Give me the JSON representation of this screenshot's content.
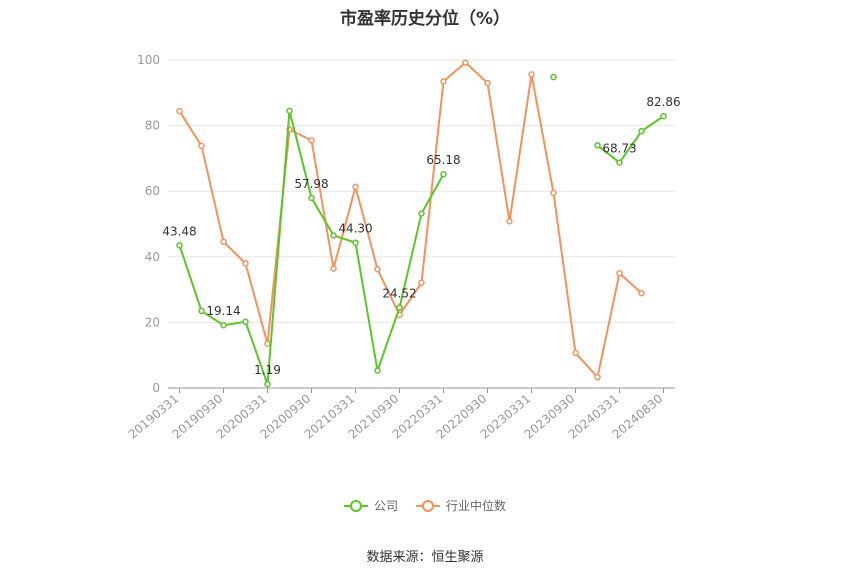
{
  "chart_data": {
    "type": "line",
    "title": "市盈率历史分位（%）",
    "ylim": [
      0,
      100
    ],
    "yticks": [
      0,
      20,
      40,
      60,
      80,
      100
    ],
    "categories": [
      "20190331",
      "20190630",
      "20190930",
      "20191231",
      "20200331",
      "20200630",
      "20200930",
      "20201231",
      "20210331",
      "20210630",
      "20210930",
      "20211231",
      "20220331",
      "20220630",
      "20220930",
      "20221231",
      "20230331",
      "20230630",
      "20230930",
      "20231231",
      "20240331",
      "20240630",
      "20240830"
    ],
    "xtick_labels": [
      "20190331",
      "20190930",
      "20200331",
      "20200930",
      "20210331",
      "20210930",
      "20220331",
      "20220930",
      "20230331",
      "20230930",
      "20240331",
      "20240830"
    ],
    "series": [
      {
        "name": "公司",
        "color": "#5ac628",
        "values": [
          43.48,
          23.5,
          19.14,
          20.2,
          1.19,
          84.5,
          57.98,
          46.5,
          44.3,
          5.3,
          24.52,
          53.2,
          65.18,
          null,
          null,
          null,
          null,
          94.8,
          null,
          74.0,
          68.73,
          78.3,
          82.86
        ],
        "labels": {
          "0": "43.48",
          "2": "19.14",
          "4": "1.19",
          "6": "57.98",
          "8": "44.30",
          "10": "24.52",
          "12": "65.18",
          "20": "68.73",
          "22": "82.86"
        }
      },
      {
        "name": "行业中位数",
        "color": "#f5915a",
        "values": [
          84.4,
          73.8,
          44.6,
          38.0,
          13.5,
          78.8,
          75.5,
          36.4,
          61.3,
          36.2,
          22.3,
          32.1,
          93.5,
          99.2,
          93.0,
          50.8,
          95.6,
          59.5,
          10.7,
          3.3,
          35.0,
          28.9,
          null
        ],
        "labels": {}
      }
    ],
    "legend_position": "bottom-center",
    "grid": true
  },
  "source_text": "数据来源：恒生聚源"
}
